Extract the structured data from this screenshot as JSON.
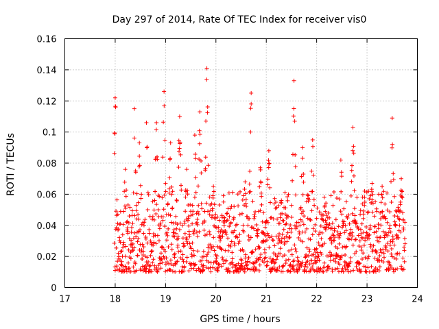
{
  "chart_data": {
    "type": "scatter",
    "title": "Day 297 of 2014, Rate Of TEC Index for receiver vis0",
    "xlabel": "GPS time / hours",
    "ylabel": "ROTI / TECUs",
    "xlim": [
      17,
      24
    ],
    "ylim": [
      0,
      0.16
    ],
    "xticks": [
      17,
      18,
      19,
      20,
      21,
      22,
      23,
      24
    ],
    "yticks": [
      0,
      0.02,
      0.04,
      0.06,
      0.08,
      0.1,
      0.12,
      0.14,
      0.16
    ],
    "xtick_labels": [
      "17",
      "18",
      "19",
      "20",
      "21",
      "22",
      "23",
      "24"
    ],
    "ytick_labels": [
      "0",
      "0.02",
      "0.04",
      "0.06",
      "0.08",
      "0.1",
      "0.12",
      "0.14",
      "0.16"
    ],
    "grid": true,
    "marker": "+",
    "color": "#ff0000",
    "sample_interval_hours": 0.004,
    "series": [
      {
        "name": "ROTI",
        "x_range": [
          17.98,
          23.76
        ],
        "typical_range": [
          0.01,
          0.05
        ],
        "peaks": [
          {
            "x": 18.0,
            "y": 0.122
          },
          {
            "x": 18.2,
            "y": 0.076
          },
          {
            "x": 18.38,
            "y": 0.115
          },
          {
            "x": 18.48,
            "y": 0.093
          },
          {
            "x": 18.62,
            "y": 0.106
          },
          {
            "x": 18.82,
            "y": 0.106
          },
          {
            "x": 18.97,
            "y": 0.126
          },
          {
            "x": 19.1,
            "y": 0.093
          },
          {
            "x": 19.28,
            "y": 0.11
          },
          {
            "x": 19.42,
            "y": 0.076
          },
          {
            "x": 19.58,
            "y": 0.098
          },
          {
            "x": 19.68,
            "y": 0.113
          },
          {
            "x": 19.82,
            "y": 0.141
          },
          {
            "x": 19.95,
            "y": 0.065
          },
          {
            "x": 20.15,
            "y": 0.055
          },
          {
            "x": 20.58,
            "y": 0.068
          },
          {
            "x": 20.7,
            "y": 0.125
          },
          {
            "x": 20.88,
            "y": 0.077
          },
          {
            "x": 21.05,
            "y": 0.088
          },
          {
            "x": 21.3,
            "y": 0.056
          },
          {
            "x": 21.55,
            "y": 0.133
          },
          {
            "x": 21.72,
            "y": 0.09
          },
          {
            "x": 21.92,
            "y": 0.095
          },
          {
            "x": 22.15,
            "y": 0.058
          },
          {
            "x": 22.48,
            "y": 0.082
          },
          {
            "x": 22.72,
            "y": 0.103
          },
          {
            "x": 22.95,
            "y": 0.058
          },
          {
            "x": 23.1,
            "y": 0.067
          },
          {
            "x": 23.3,
            "y": 0.065
          },
          {
            "x": 23.5,
            "y": 0.109
          },
          {
            "x": 23.68,
            "y": 0.07
          }
        ]
      }
    ]
  }
}
